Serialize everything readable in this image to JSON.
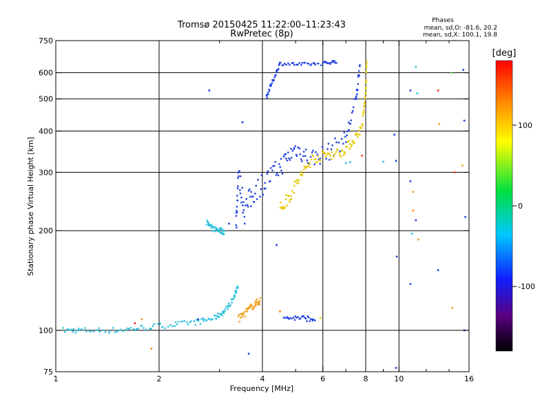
{
  "chart_data": {
    "type": "scatter",
    "title": "Tromsø 20150425 11:22:00–11:23:43",
    "subtitle": "RwPretec (8p)",
    "xlabel": "Frequency [MHz]",
    "ylabel": "Stationary phase Virtual Height [km]",
    "x_scale": "log",
    "y_scale": "log",
    "xlim": [
      1,
      16
    ],
    "ylim": [
      75,
      750
    ],
    "x_ticks": [
      {
        "value": 1,
        "label": "1"
      },
      {
        "value": 2,
        "label": "2"
      },
      {
        "value": 4,
        "label": "4"
      },
      {
        "value": 6,
        "label": "6"
      },
      {
        "value": 8,
        "label": "8"
      },
      {
        "value": 10,
        "label": "10"
      },
      {
        "value": 16,
        "label": "16"
      }
    ],
    "x_minor_ticks": [
      3,
      5,
      7,
      9,
      12,
      14
    ],
    "y_ticks": [
      {
        "value": 75,
        "label": "75"
      },
      {
        "value": 100,
        "label": "100"
      },
      {
        "value": 200,
        "label": "200"
      },
      {
        "value": 300,
        "label": "300"
      },
      {
        "value": 400,
        "label": "400"
      },
      {
        "value": 500,
        "label": "500"
      },
      {
        "value": 600,
        "label": "600"
      },
      {
        "value": 750,
        "label": "750"
      }
    ],
    "grid": true,
    "grid_x": [
      2,
      4,
      6,
      8,
      10
    ],
    "grid_y": [
      100,
      200,
      300,
      400,
      500,
      600
    ],
    "stats_box": {
      "heading": "Phases",
      "line1": "mean, sd,O: -81.6, 20.2",
      "line2": "mean, sd,X: 100.1, 19.8"
    },
    "colorbar": {
      "label": "[deg]",
      "range": [
        -180,
        180
      ],
      "colormap": "rainbow",
      "ticks": [
        {
          "value": 100,
          "label": "100"
        },
        {
          "value": 0,
          "label": "0"
        },
        {
          "value": -100,
          "label": "-100"
        }
      ]
    },
    "series": [
      {
        "color": "#29c0e0",
        "trace": [
          [
            1.05,
            100
          ],
          [
            1.2,
            100
          ],
          [
            1.5,
            100
          ],
          [
            1.8,
            102
          ],
          [
            2.2,
            104
          ],
          [
            2.6,
            106
          ],
          [
            2.9,
            109
          ],
          [
            3.1,
            114
          ],
          [
            3.3,
            125
          ],
          [
            3.4,
            138
          ]
        ],
        "height_spread": 2
      },
      {
        "color": "#29c0e0",
        "trace": [
          [
            2.75,
            212
          ],
          [
            2.85,
            203
          ],
          [
            3.0,
            201
          ],
          [
            3.1,
            198
          ]
        ],
        "height_spread": 4
      },
      {
        "color": "#1f3fe0",
        "trace": [
          [
            3.35,
            200
          ],
          [
            3.4,
            300
          ],
          [
            3.55,
            230
          ],
          [
            3.8,
            265
          ],
          [
            4.2,
            290
          ],
          [
            4.6,
            320
          ],
          [
            5.0,
            355
          ],
          [
            5.5,
            330
          ],
          [
            6.2,
            345
          ],
          [
            7.0,
            380
          ],
          [
            7.5,
            500
          ],
          [
            7.7,
            640
          ]
        ],
        "height_spread": 22
      },
      {
        "color": "#1f3fe0",
        "trace": [
          [
            4.1,
            505
          ],
          [
            4.3,
            570
          ],
          [
            4.5,
            640
          ],
          [
            5.2,
            635
          ],
          [
            6.0,
            640
          ],
          [
            6.6,
            650
          ]
        ],
        "height_spread": 8
      },
      {
        "color": "#e8c800",
        "trace": [
          [
            4.5,
            230
          ],
          [
            4.8,
            255
          ],
          [
            5.2,
            295
          ],
          [
            5.6,
            330
          ],
          [
            6.2,
            340
          ],
          [
            6.8,
            345
          ],
          [
            7.3,
            370
          ],
          [
            7.8,
            410
          ],
          [
            8.0,
            520
          ],
          [
            8.05,
            660
          ]
        ],
        "height_spread": 12
      },
      {
        "color": "#f0a020",
        "trace": [
          [
            3.4,
            108
          ],
          [
            3.6,
            114
          ],
          [
            3.8,
            120
          ],
          [
            3.95,
            123
          ]
        ],
        "height_spread": 3
      },
      {
        "color": "#1f3fe0",
        "trace": [
          [
            4.6,
            109
          ],
          [
            5.2,
            109
          ],
          [
            5.7,
            108
          ]
        ],
        "height_spread": 2
      }
    ],
    "scatter_points": [
      [
        2.8,
        530,
        "#1f3fe0"
      ],
      [
        3.5,
        425,
        "#1f3fe0"
      ],
      [
        4.4,
        181,
        "#1f3fe0"
      ],
      [
        3.65,
        85,
        "#1f3fe0"
      ],
      [
        7.0,
        320,
        "#29c0e0"
      ],
      [
        7.2,
        322,
        "#29c0e0"
      ],
      [
        7.8,
        337,
        "#ff4000"
      ],
      [
        9.0,
        323,
        "#29c0e0"
      ],
      [
        9.7,
        390,
        "#1f3fe0"
      ],
      [
        9.8,
        325,
        "#1f3fe0"
      ],
      [
        9.85,
        167,
        "#1f3fe0"
      ],
      [
        9.8,
        77,
        "#1f3fe0"
      ],
      [
        10.8,
        530,
        "#1f3fe0"
      ],
      [
        11.2,
        625,
        "#29c0e0"
      ],
      [
        11.3,
        520,
        "#29c0e0"
      ],
      [
        13.0,
        530,
        "#ff2020"
      ],
      [
        13.1,
        420,
        "#f0a020"
      ],
      [
        14.2,
        600,
        "#60e060"
      ],
      [
        15.4,
        612,
        "#1f3fe0"
      ],
      [
        15.5,
        430,
        "#1f3fe0"
      ],
      [
        15.3,
        315,
        "#f0a020"
      ],
      [
        14.5,
        300,
        "#ff4000"
      ],
      [
        10.8,
        282,
        "#1f3fe0"
      ],
      [
        11.0,
        262,
        "#f0a020"
      ],
      [
        11.0,
        230,
        "#ff8000"
      ],
      [
        11.2,
        215,
        "#1f3fe0"
      ],
      [
        10.9,
        196,
        "#29c0e0"
      ],
      [
        11.4,
        188,
        "#f0a020"
      ],
      [
        13.0,
        152,
        "#1f3fe0"
      ],
      [
        14.3,
        117,
        "#f0a020"
      ],
      [
        15.5,
        100,
        "#1f3fe0"
      ],
      [
        15.6,
        220,
        "#1f3fe0"
      ],
      [
        10.8,
        138,
        "#1f3fe0"
      ],
      [
        1.78,
        108,
        "#f0a020"
      ],
      [
        1.9,
        88,
        "#ff8000"
      ],
      [
        1.7,
        105,
        "#ff2020"
      ],
      [
        2.6,
        108,
        "#1f3fe0"
      ],
      [
        4.5,
        114,
        "#ff8000"
      ],
      [
        5.9,
        109,
        "#e8c800"
      ],
      [
        3.2,
        210,
        "#1f3fe0"
      ]
    ]
  }
}
